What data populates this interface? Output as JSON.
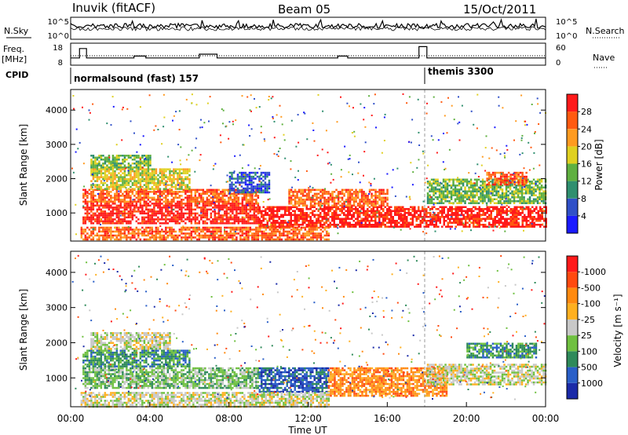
{
  "header": {
    "station": "Inuvik (fitACF)",
    "beam": "Beam 05",
    "date": "15/Oct/2011"
  },
  "panel_labels": {
    "nsky": "N.Sky",
    "nsearch": "N.Search",
    "freq": "Freq.",
    "freq_unit": "[MHz]",
    "nave": "Nave",
    "cpid": "CPID"
  },
  "cpid_segments": [
    {
      "label": "normalsound (fast) 157",
      "start": "00:00",
      "end": "18:00"
    },
    {
      "label": "themis 3300",
      "start": "18:00",
      "end": "00:00"
    }
  ],
  "chart_data": [
    {
      "type": "line",
      "name": "noise",
      "y_ticks_left": [
        "10^5",
        "10^0"
      ],
      "y_ticks_right": [
        "10^5",
        "10^0"
      ],
      "x_range": [
        0,
        24
      ]
    },
    {
      "type": "line",
      "name": "frequency-nave",
      "y_ticks_left": [
        "18",
        "8"
      ],
      "y_ticks_right": [
        "60",
        "0"
      ],
      "ylim_left": [
        8,
        18
      ],
      "ylim_right": [
        0,
        60
      ],
      "freq_steps": [
        {
          "t0": 0.0,
          "t1": 0.45,
          "mhz": 11
        },
        {
          "t0": 0.45,
          "t1": 0.8,
          "mhz": 16
        },
        {
          "t0": 0.8,
          "t1": 3.2,
          "mhz": 11
        },
        {
          "t0": 3.2,
          "t1": 3.8,
          "mhz": 12
        },
        {
          "t0": 3.8,
          "t1": 6.5,
          "mhz": 11
        },
        {
          "t0": 6.5,
          "t1": 7.4,
          "mhz": 13
        },
        {
          "t0": 7.4,
          "t1": 13.5,
          "mhz": 11
        },
        {
          "t0": 13.5,
          "t1": 14.0,
          "mhz": 12
        },
        {
          "t0": 14.0,
          "t1": 17.6,
          "mhz": 11
        },
        {
          "t0": 17.6,
          "t1": 18.0,
          "mhz": 17
        },
        {
          "t0": 18.0,
          "t1": 24.0,
          "mhz": 11
        }
      ]
    },
    {
      "type": "heatmap",
      "name": "power",
      "ylabel": "Slant Range [km]",
      "y_ticks": [
        "1000",
        "2000",
        "3000",
        "4000"
      ],
      "ylim": [
        180,
        4600
      ],
      "colorbar_label": "Power [dB]",
      "colorbar_ticks": [
        "4",
        "8",
        "12",
        "16",
        "20",
        "24",
        "28"
      ],
      "colors": [
        "#1a1aff",
        "#3050c8",
        "#2f8f6f",
        "#5fb040",
        "#e0d020",
        "#ff9b20",
        "#ff5a10",
        "#ff1a1a"
      ],
      "bands": [
        {
          "t0": 0.6,
          "t1": 9.5,
          "r0": 700,
          "r1": 1300,
          "level": 7
        },
        {
          "t0": 0.6,
          "t1": 9.5,
          "r0": 1300,
          "r1": 1700,
          "level": 6
        },
        {
          "t0": 1.0,
          "t1": 6.0,
          "r0": 1700,
          "r1": 2300,
          "level": 4
        },
        {
          "t0": 1.0,
          "t1": 4.0,
          "r0": 2300,
          "r1": 2700,
          "level": 3
        },
        {
          "t0": 9.5,
          "t1": 24.0,
          "r0": 600,
          "r1": 1200,
          "level": 7
        },
        {
          "t0": 11.0,
          "t1": 16.0,
          "r0": 1200,
          "r1": 1700,
          "level": 6
        },
        {
          "t0": 8.0,
          "t1": 10.0,
          "r0": 1600,
          "r1": 2200,
          "level": 1
        },
        {
          "t0": 18.0,
          "t1": 24.0,
          "r0": 1300,
          "r1": 2000,
          "level": 3
        },
        {
          "t0": 21.0,
          "t1": 23.0,
          "r0": 1800,
          "r1": 2200,
          "level": 6
        },
        {
          "t0": 0.5,
          "t1": 13.0,
          "r0": 200,
          "r1": 600,
          "level": 6
        }
      ]
    },
    {
      "type": "heatmap",
      "name": "velocity",
      "ylabel": "Slant Range [km]",
      "y_ticks": [
        "1000",
        "2000",
        "3000",
        "4000"
      ],
      "ylim": [
        180,
        4600
      ],
      "xlabel": "Time UT",
      "x_ticks": [
        "00:00",
        "04:00",
        "08:00",
        "12:00",
        "16:00",
        "20:00",
        "00:00"
      ],
      "x_range": [
        0,
        24
      ],
      "colorbar_label": "Velocity [m s⁻¹]",
      "colorbar_ticks": [
        "1000",
        "500",
        "100",
        "25",
        "-25",
        "-100",
        "-500",
        "-1000"
      ],
      "colors": [
        "#1a2aa8",
        "#2a5fc8",
        "#2f8a5a",
        "#6fc040",
        "#c8c8c8",
        "#ffb020",
        "#ff8a10",
        "#ff4a10",
        "#ff1a1a"
      ],
      "bands": [
        {
          "t0": 0.6,
          "t1": 9.5,
          "r0": 700,
          "r1": 1300,
          "level": 3
        },
        {
          "t0": 0.6,
          "t1": 6.0,
          "r0": 1300,
          "r1": 1800,
          "level": 2
        },
        {
          "t0": 1.0,
          "t1": 5.0,
          "r0": 1800,
          "r1": 2300,
          "level": 4
        },
        {
          "t0": 9.5,
          "t1": 13.0,
          "r0": 600,
          "r1": 1300,
          "level": 1
        },
        {
          "t0": 13.0,
          "t1": 19.0,
          "r0": 500,
          "r1": 1300,
          "level": 6
        },
        {
          "t0": 18.0,
          "t1": 24.0,
          "r0": 800,
          "r1": 1400,
          "level": 4
        },
        {
          "t0": 20.0,
          "t1": 23.5,
          "r0": 1600,
          "r1": 2000,
          "level": 2
        },
        {
          "t0": 0.5,
          "t1": 13.0,
          "r0": 200,
          "r1": 600,
          "level": 4
        }
      ]
    }
  ]
}
